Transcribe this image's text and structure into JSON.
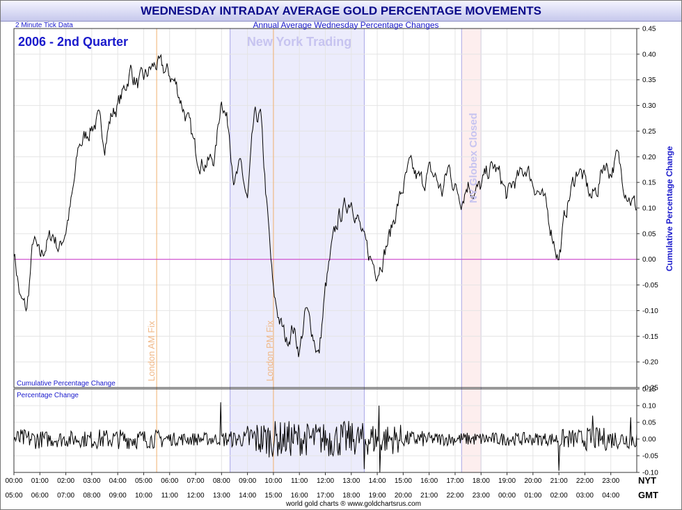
{
  "header": {
    "title": "WEDNESDAY INTRADAY AVERAGE GOLD PERCENTAGE MOVEMENTS",
    "tick_note": "2 Minute Tick Data",
    "subtitle": "Annual Average Wednesday Percentage Changes",
    "period": "2006 - 2nd Quarter",
    "footer": "world gold charts ® www.goldchartsrus.com"
  },
  "labels": {
    "ny_session": "New York Trading",
    "london_am": "London AM Fix",
    "london_pm": "London PM Fix",
    "globex": "NY Globex Closed",
    "top_panel": "Cumulative Percentage Change",
    "bottom_panel": "Percentage Change",
    "y_axis": "Cumulative Percentage Change",
    "nyt": "NYT",
    "gmt": "GMT"
  },
  "colors": {
    "title_text": "#0b0b8a",
    "series": "#000000",
    "zero_line": "#cc33cc",
    "ny_band": "#ececfc",
    "globex_band": "#fdeeee",
    "fix_line": "#f0b070",
    "label_blue": "#1a1acc"
  },
  "chart_data": [
    {
      "type": "line",
      "name": "Cumulative Percentage Change",
      "x_unit": "NY time (hours)",
      "xlim": [
        0,
        24
      ],
      "ylim": [
        -0.25,
        0.45
      ],
      "yticks": [
        "0.45",
        "0.40",
        "0.35",
        "0.30",
        "0.25",
        "0.20",
        "0.15",
        "0.10",
        "0.05",
        "0.00",
        "-0.05",
        "-0.10",
        "-0.15",
        "-0.20",
        "-0.25"
      ],
      "x": [
        0,
        0.25,
        0.5,
        0.75,
        1,
        1.25,
        1.5,
        1.75,
        2,
        2.25,
        2.5,
        2.75,
        3,
        3.25,
        3.5,
        3.75,
        4,
        4.25,
        4.5,
        4.75,
        5,
        5.25,
        5.5,
        5.75,
        6,
        6.25,
        6.5,
        6.75,
        7,
        7.25,
        7.5,
        7.75,
        8,
        8.3,
        8.5,
        8.75,
        9,
        9.25,
        9.5,
        9.75,
        10,
        10.25,
        10.5,
        10.75,
        11,
        11.25,
        11.5,
        11.75,
        12,
        12.25,
        12.5,
        12.75,
        13,
        13.25,
        13.5,
        13.75,
        14,
        14.25,
        14.5,
        14.75,
        15,
        15.25,
        15.5,
        15.75,
        16,
        16.25,
        16.5,
        16.75,
        17,
        17.25,
        17.5,
        17.75,
        18,
        18.25,
        18.5,
        18.75,
        19,
        19.25,
        19.5,
        19.75,
        20,
        20.25,
        20.5,
        20.75,
        21,
        21.25,
        21.5,
        21.75,
        22,
        22.25,
        22.5,
        22.75,
        23,
        23.25,
        23.5,
        23.75,
        24
      ],
      "values": [
        0.02,
        -0.08,
        -0.1,
        0.04,
        0.0,
        0.03,
        0.05,
        0.02,
        0.06,
        0.12,
        0.22,
        0.24,
        0.26,
        0.27,
        0.23,
        0.28,
        0.3,
        0.33,
        0.37,
        0.34,
        0.35,
        0.37,
        0.38,
        0.37,
        0.36,
        0.34,
        0.3,
        0.26,
        0.21,
        0.19,
        0.19,
        0.2,
        0.32,
        0.25,
        0.15,
        0.18,
        0.11,
        0.27,
        0.28,
        0.1,
        -0.07,
        -0.12,
        -0.16,
        -0.13,
        -0.18,
        -0.1,
        -0.14,
        -0.19,
        -0.06,
        0.02,
        0.08,
        0.1,
        0.12,
        0.08,
        0.03,
        0.0,
        -0.02,
        0.01,
        0.05,
        0.1,
        0.14,
        0.18,
        0.16,
        0.15,
        0.17,
        0.16,
        0.13,
        0.18,
        0.14,
        0.12,
        0.15,
        0.13,
        0.14,
        0.17,
        0.18,
        0.16,
        0.12,
        0.15,
        0.16,
        0.18,
        0.15,
        0.13,
        0.1,
        0.05,
        0.0,
        0.09,
        0.14,
        0.18,
        0.15,
        0.12,
        0.14,
        0.19,
        0.17,
        0.2,
        0.15,
        0.12,
        0.1
      ]
    },
    {
      "type": "line",
      "name": "Percentage Change",
      "ylim": [
        -0.1,
        0.15
      ],
      "yticks": [
        "0.15",
        "0.10",
        "0.05",
        "0.00",
        "-0.05",
        "-0.10"
      ],
      "amplitude_by_hour": [
        0.03,
        0.025,
        0.025,
        0.03,
        0.03,
        0.028,
        0.02,
        0.02,
        0.025,
        0.055,
        0.055,
        0.05,
        0.055,
        0.05,
        0.045,
        0.025,
        0.02,
        0.02,
        0.02,
        0.02,
        0.02,
        0.03,
        0.035,
        0.03
      ],
      "spikes": [
        {
          "x": 7.95,
          "y": 0.11
        },
        {
          "x": 13.5,
          "y": -0.09
        },
        {
          "x": 14.05,
          "y": 0.1
        },
        {
          "x": 14.1,
          "y": -0.1
        },
        {
          "x": 21.0,
          "y": -0.095
        },
        {
          "x": 22.3,
          "y": 0.07
        },
        {
          "x": 23.75,
          "y": 0.065
        }
      ]
    }
  ],
  "x_axis": {
    "nyt": [
      "00:00",
      "01:00",
      "02:00",
      "03:00",
      "04:00",
      "05:00",
      "06:00",
      "07:00",
      "08:00",
      "09:00",
      "10:00",
      "11:00",
      "12:00",
      "13:00",
      "14:00",
      "15:00",
      "16:00",
      "17:00",
      "18:00",
      "19:00",
      "20:00",
      "21:00",
      "22:00",
      "23:00"
    ],
    "gmt": [
      "05:00",
      "06:00",
      "07:00",
      "08:00",
      "09:00",
      "10:00",
      "11:00",
      "12:00",
      "13:00",
      "14:00",
      "15:00",
      "16:00",
      "17:00",
      "18:00",
      "19:00",
      "20:00",
      "21:00",
      "22:00",
      "23:00",
      "00:00",
      "01:00",
      "02:00",
      "03:00",
      "04:00"
    ]
  },
  "events": {
    "ny_session": [
      8.33,
      13.5
    ],
    "globex_closed": [
      17.25,
      18.0
    ],
    "london_am_fix": 5.5,
    "london_pm_fix": 10.0
  }
}
